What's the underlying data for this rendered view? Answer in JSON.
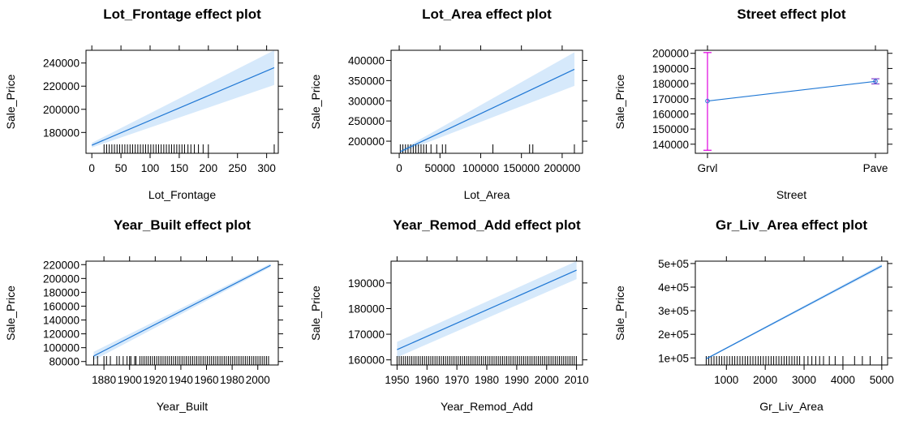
{
  "chart_data": [
    {
      "type": "line",
      "title": "Lot_Frontage effect plot",
      "xlabel": "Lot_Frontage",
      "ylabel": "Sale_Price",
      "xlim": [
        -10,
        320
      ],
      "ylim": [
        162000,
        251000
      ],
      "xticks": [
        0,
        50,
        100,
        150,
        200,
        250,
        300
      ],
      "xtick_labels": [
        "0",
        "50",
        "100",
        "150",
        "200",
        "250",
        "300"
      ],
      "yticks": [
        180000,
        200000,
        220000,
        240000
      ],
      "ytick_labels": [
        "180000",
        "200000",
        "220000",
        "240000"
      ],
      "x": [
        0,
        313
      ],
      "y": [
        169000,
        236000
      ],
      "lower": [
        167000,
        221000
      ],
      "upper": [
        171000,
        251000
      ],
      "rug": {
        "dense": [
          21,
          160
        ],
        "sparse": [
          165,
          170,
          176,
          183,
          191,
          200,
          313
        ]
      }
    },
    {
      "type": "line",
      "title": "Lot_Area effect plot",
      "xlabel": "Lot_Area",
      "ylabel": "Sale_Price",
      "xlim": [
        -10000,
        225000
      ],
      "ylim": [
        170000,
        425000
      ],
      "xticks": [
        0,
        50000,
        100000,
        150000,
        200000
      ],
      "xtick_labels": [
        "0",
        "50000",
        "100000",
        "150000",
        "200000"
      ],
      "yticks": [
        200000,
        250000,
        300000,
        350000,
        400000
      ],
      "ytick_labels": [
        "200000",
        "250000",
        "300000",
        "350000",
        "400000"
      ],
      "x": [
        1300,
        215000
      ],
      "y": [
        174000,
        378000
      ],
      "lower": [
        171000,
        337000
      ],
      "upper": [
        177000,
        420000
      ],
      "rug": {
        "dense": [
          1300,
          35000
        ],
        "sparse": [
          39000,
          46000,
          53000,
          57000,
          115000,
          160000,
          164000,
          215000
        ]
      }
    },
    {
      "type": "scatter",
      "title": "Street effect plot",
      "xlabel": "Street",
      "ylabel": "Sale_Price",
      "ylim": [
        134000,
        202000
      ],
      "categories": [
        "Grvl",
        "Pave"
      ],
      "yticks": [
        140000,
        150000,
        160000,
        170000,
        180000,
        190000,
        200000
      ],
      "ytick_labels": [
        "140000",
        "150000",
        "160000",
        "170000",
        "180000",
        "190000",
        "200000"
      ],
      "values": [
        168500,
        181500
      ],
      "lower": [
        136000,
        179800
      ],
      "upper": [
        200500,
        183200
      ],
      "colors": {
        "line": "#1f77d4",
        "grvl_bar": "#e000e0",
        "pave_bar": "#8844cc"
      }
    },
    {
      "type": "line",
      "title": "Year_Built effect plot",
      "xlabel": "Year_Built",
      "ylabel": "Sale_Price",
      "xlim": [
        1866,
        2016
      ],
      "ylim": [
        75000,
        225000
      ],
      "xticks": [
        1880,
        1900,
        1920,
        1940,
        1960,
        1980,
        2000
      ],
      "xtick_labels": [
        "1880",
        "1900",
        "1920",
        "1940",
        "1960",
        "1980",
        "2000"
      ],
      "yticks": [
        80000,
        100000,
        120000,
        140000,
        160000,
        180000,
        200000,
        220000
      ],
      "ytick_labels": [
        "80000",
        "100000",
        "120000",
        "140000",
        "160000",
        "180000",
        "200000",
        "220000"
      ],
      "x": [
        1872,
        2010
      ],
      "y": [
        88000,
        219000
      ],
      "lower": [
        82000,
        216500
      ],
      "upper": [
        94000,
        221500
      ],
      "rug": {
        "dense": [
          1908,
          2010
        ],
        "sparse": [
          1872,
          1875,
          1880,
          1882,
          1885,
          1890,
          1892,
          1895,
          1898,
          1900,
          1901,
          1904,
          1905
        ]
      }
    },
    {
      "type": "line",
      "title": "Year_Remod_Add effect plot",
      "xlabel": "Year_Remod_Add",
      "ylabel": "Sale_Price",
      "xlim": [
        1948,
        2012
      ],
      "ylim": [
        158000,
        198500
      ],
      "xticks": [
        1950,
        1960,
        1970,
        1980,
        1990,
        2000,
        2010
      ],
      "xtick_labels": [
        "1950",
        "1960",
        "1970",
        "1980",
        "1990",
        "2000",
        "2010"
      ],
      "yticks": [
        160000,
        170000,
        180000,
        190000
      ],
      "ytick_labels": [
        "160000",
        "170000",
        "180000",
        "190000"
      ],
      "x": [
        1950,
        2010
      ],
      "y": [
        164000,
        195000
      ],
      "lower": [
        161000,
        191500
      ],
      "upper": [
        167000,
        198500
      ],
      "rug": {
        "dense": [
          1950,
          2010
        ],
        "sparse": []
      }
    },
    {
      "type": "line",
      "title": "Gr_Liv_Area effect plot",
      "xlabel": "Gr_Liv_Area",
      "ylabel": "Sale_Price",
      "xlim": [
        200,
        5150
      ],
      "ylim": [
        70000,
        510000
      ],
      "xticks": [
        1000,
        2000,
        3000,
        4000,
        5000
      ],
      "xtick_labels": [
        "1000",
        "2000",
        "3000",
        "4000",
        "5000"
      ],
      "yticks": [
        100000,
        200000,
        300000,
        400000,
        500000
      ],
      "ytick_labels": [
        "1e+05",
        "2e+05",
        "3e+05",
        "4e+05",
        "5e+05"
      ],
      "x": [
        480,
        5000
      ],
      "y": [
        96000,
        490000
      ],
      "lower": [
        93000,
        482000
      ],
      "upper": [
        99000,
        498000
      ],
      "rug": {
        "dense": [
          480,
          2900
        ],
        "sparse": [
          3000,
          3100,
          3200,
          3300,
          3400,
          3500,
          3650,
          3800,
          4000,
          4300,
          4500,
          4700,
          5000
        ]
      }
    }
  ],
  "colors": {
    "band": "#d6e9fb",
    "line": "#1f77d4",
    "frame": "#000000",
    "rug": "#000000"
  }
}
